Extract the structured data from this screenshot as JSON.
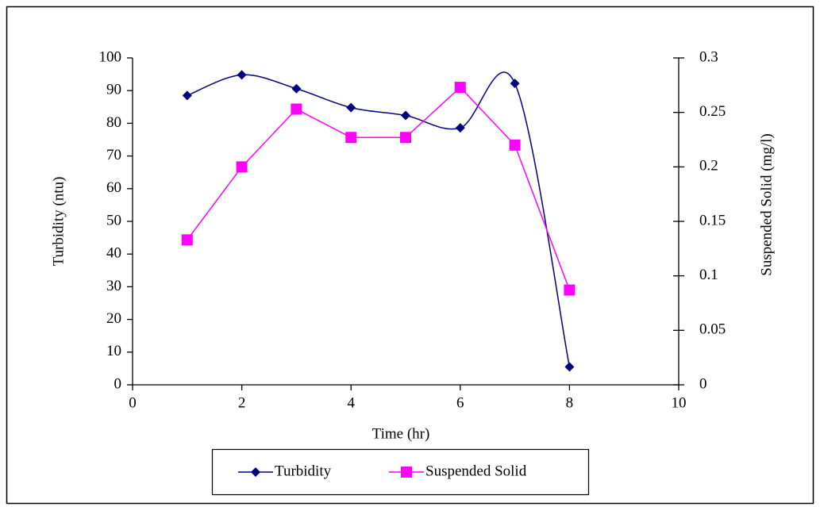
{
  "chart_data": {
    "type": "line",
    "x": [
      1,
      2,
      3,
      4,
      5,
      6,
      7,
      8
    ],
    "xlabel": "Time (hr)",
    "ylabel": "Turbidity (ntu)",
    "y2label": "Suspended Solid (mg/l)",
    "xlim": [
      0,
      10
    ],
    "xticks": [
      0,
      2,
      4,
      6,
      8,
      10
    ],
    "ylim": [
      0,
      100
    ],
    "yticks": [
      0,
      10,
      20,
      30,
      40,
      50,
      60,
      70,
      80,
      90,
      100
    ],
    "y2lim": [
      0,
      0.3
    ],
    "y2ticks": [
      0,
      0.05,
      0.1,
      0.15,
      0.2,
      0.25,
      0.3
    ],
    "grid": false,
    "legend": "bottom",
    "series": [
      {
        "name": "Turbidity",
        "color": "#000080",
        "marker": "diamond",
        "smooth": true,
        "values": [
          88.5,
          94.8,
          90.6,
          84.8,
          82.4,
          78.6,
          92.2,
          5.5
        ]
      },
      {
        "name": "Suspended Solid",
        "color": "#ff00ff",
        "marker": "square",
        "smooth": false,
        "axis": "y2",
        "values": [
          0.133,
          0.2,
          0.253,
          0.227,
          0.227,
          0.273,
          0.22,
          0.087
        ]
      }
    ]
  }
}
